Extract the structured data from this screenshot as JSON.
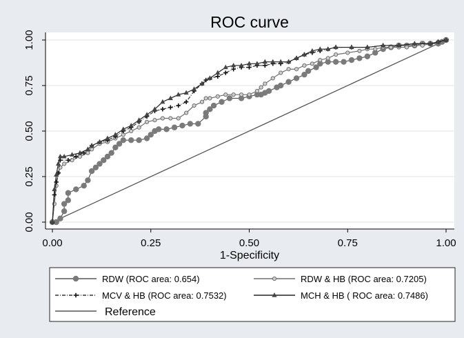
{
  "chart_data": {
    "type": "line",
    "title": "ROC curve",
    "xlabel": "1-Specificity",
    "ylabel": "",
    "xlim": [
      0,
      1
    ],
    "ylim": [
      0,
      1
    ],
    "xticks": [
      0,
      0.25,
      0.5,
      0.75,
      1
    ],
    "yticks": [
      0,
      0.25,
      0.5,
      0.75,
      1
    ],
    "xtick_labels": [
      "0.00",
      "0.25",
      "0.50",
      "0.75",
      "1.00"
    ],
    "ytick_labels": [
      "0.00",
      "0.25",
      "0.50",
      "0.75",
      "1.00"
    ],
    "grid": "horizontal",
    "legend_position": "bottom",
    "series": [
      {
        "name": "RDW",
        "legend_label": "RDW (ROC area: 0.654)",
        "auc": 0.654,
        "marker": "circle",
        "color": "#555555",
        "marker_color": "#7a7a7a",
        "x": [
          0,
          0.01,
          0.02,
          0.03,
          0.03,
          0.04,
          0.04,
          0.06,
          0.08,
          0.09,
          0.1,
          0.11,
          0.12,
          0.13,
          0.14,
          0.15,
          0.16,
          0.17,
          0.18,
          0.2,
          0.22,
          0.24,
          0.25,
          0.26,
          0.27,
          0.29,
          0.31,
          0.33,
          0.35,
          0.37,
          0.39,
          0.39,
          0.4,
          0.41,
          0.43,
          0.45,
          0.48,
          0.5,
          0.52,
          0.53,
          0.54,
          0.55,
          0.57,
          0.58,
          0.6,
          0.62,
          0.64,
          0.65,
          0.67,
          0.68,
          0.7,
          0.72,
          0.74,
          0.76,
          0.78,
          0.8,
          0.82,
          0.84,
          0.86,
          0.88,
          0.9,
          0.92,
          0.94,
          0.96,
          0.98,
          0.99,
          1
        ],
        "y": [
          0,
          0,
          0.02,
          0.06,
          0.1,
          0.12,
          0.16,
          0.18,
          0.2,
          0.23,
          0.28,
          0.3,
          0.32,
          0.34,
          0.36,
          0.38,
          0.41,
          0.43,
          0.45,
          0.45,
          0.45,
          0.46,
          0.48,
          0.5,
          0.51,
          0.51,
          0.52,
          0.53,
          0.54,
          0.54,
          0.58,
          0.6,
          0.62,
          0.64,
          0.66,
          0.68,
          0.68,
          0.69,
          0.7,
          0.7,
          0.71,
          0.72,
          0.74,
          0.75,
          0.77,
          0.79,
          0.81,
          0.83,
          0.85,
          0.87,
          0.88,
          0.88,
          0.88,
          0.89,
          0.9,
          0.91,
          0.93,
          0.95,
          0.96,
          0.97,
          0.97,
          0.97,
          0.98,
          0.98,
          0.98,
          0.99,
          1
        ]
      },
      {
        "name": "RDW & HB",
        "legend_label": "RDW & HB (ROC area: 0.7205)",
        "auc": 0.7205,
        "marker": "small-circle",
        "color": "#6e6e6e",
        "marker_color": "#6e6e6e",
        "x": [
          0,
          0.005,
          0.01,
          0.015,
          0.02,
          0.03,
          0.05,
          0.07,
          0.09,
          0.1,
          0.12,
          0.14,
          0.16,
          0.18,
          0.2,
          0.22,
          0.24,
          0.26,
          0.28,
          0.3,
          0.32,
          0.34,
          0.36,
          0.38,
          0.39,
          0.4,
          0.42,
          0.44,
          0.46,
          0.48,
          0.5,
          0.52,
          0.53,
          0.54,
          0.56,
          0.58,
          0.6,
          0.62,
          0.64,
          0.66,
          0.68,
          0.7,
          0.72,
          0.75,
          0.78,
          0.8,
          0.82,
          0.84,
          0.86,
          0.88,
          0.9,
          0.92,
          0.94,
          0.96,
          0.98,
          1
        ],
        "y": [
          0,
          0.1,
          0.2,
          0.27,
          0.3,
          0.32,
          0.34,
          0.36,
          0.38,
          0.4,
          0.43,
          0.44,
          0.46,
          0.48,
          0.5,
          0.52,
          0.55,
          0.56,
          0.57,
          0.57,
          0.57,
          0.6,
          0.64,
          0.66,
          0.68,
          0.68,
          0.69,
          0.7,
          0.7,
          0.7,
          0.7,
          0.72,
          0.74,
          0.76,
          0.79,
          0.82,
          0.84,
          0.84,
          0.86,
          0.87,
          0.89,
          0.9,
          0.92,
          0.93,
          0.94,
          0.95,
          0.95,
          0.96,
          0.96,
          0.96,
          0.96,
          0.97,
          0.97,
          0.98,
          0.99,
          1
        ]
      },
      {
        "name": "MCV & HB",
        "legend_label": "MCV & HB (ROC area: 0.7532)",
        "auc": 0.7532,
        "marker": "plus",
        "color": "#333333",
        "marker_color": "#111111",
        "x": [
          0,
          0.005,
          0.01,
          0.015,
          0.02,
          0.04,
          0.06,
          0.08,
          0.1,
          0.12,
          0.14,
          0.16,
          0.18,
          0.2,
          0.22,
          0.24,
          0.26,
          0.28,
          0.3,
          0.32,
          0.34,
          0.36,
          0.38,
          0.39,
          0.4,
          0.42,
          0.44,
          0.46,
          0.48,
          0.5,
          0.52,
          0.54,
          0.56,
          0.58,
          0.6,
          0.62,
          0.64,
          0.66,
          0.68,
          0.7,
          0.72,
          0.76,
          0.8,
          0.84,
          0.88,
          0.92,
          0.96,
          0.98,
          1
        ],
        "y": [
          0,
          0.15,
          0.22,
          0.27,
          0.34,
          0.34,
          0.36,
          0.38,
          0.42,
          0.44,
          0.45,
          0.47,
          0.5,
          0.52,
          0.55,
          0.58,
          0.61,
          0.62,
          0.63,
          0.64,
          0.66,
          0.72,
          0.76,
          0.78,
          0.79,
          0.8,
          0.82,
          0.84,
          0.85,
          0.85,
          0.86,
          0.86,
          0.87,
          0.87,
          0.88,
          0.9,
          0.92,
          0.93,
          0.94,
          0.95,
          0.96,
          0.96,
          0.96,
          0.97,
          0.97,
          0.98,
          0.98,
          0.99,
          1
        ]
      },
      {
        "name": "MCH & HB",
        "legend_label": "MCH & HB ( ROC area: 0.7486)",
        "auc": 0.7486,
        "marker": "triangle",
        "color": "#222222",
        "marker_color": "#444444",
        "x": [
          0,
          0.005,
          0.01,
          0.015,
          0.02,
          0.03,
          0.05,
          0.07,
          0.09,
          0.1,
          0.12,
          0.14,
          0.16,
          0.18,
          0.2,
          0.22,
          0.24,
          0.26,
          0.28,
          0.3,
          0.32,
          0.34,
          0.36,
          0.38,
          0.4,
          0.42,
          0.44,
          0.46,
          0.48,
          0.5,
          0.52,
          0.54,
          0.56,
          0.58,
          0.6,
          0.62,
          0.64,
          0.66,
          0.68,
          0.7,
          0.72,
          0.76,
          0.8,
          0.84,
          0.88,
          0.92,
          0.96,
          0.98,
          1
        ],
        "y": [
          0,
          0.18,
          0.26,
          0.32,
          0.36,
          0.36,
          0.37,
          0.38,
          0.4,
          0.42,
          0.44,
          0.46,
          0.48,
          0.51,
          0.53,
          0.56,
          0.59,
          0.62,
          0.66,
          0.68,
          0.7,
          0.71,
          0.73,
          0.76,
          0.79,
          0.82,
          0.85,
          0.86,
          0.86,
          0.87,
          0.87,
          0.88,
          0.88,
          0.88,
          0.88,
          0.9,
          0.92,
          0.94,
          0.95,
          0.95,
          0.96,
          0.96,
          0.96,
          0.97,
          0.97,
          0.98,
          0.98,
          0.99,
          1
        ]
      }
    ],
    "reference": {
      "name": "Reference",
      "legend_label": "Reference",
      "x": [
        0,
        1
      ],
      "y": [
        0,
        1
      ],
      "color": "#555555"
    }
  }
}
